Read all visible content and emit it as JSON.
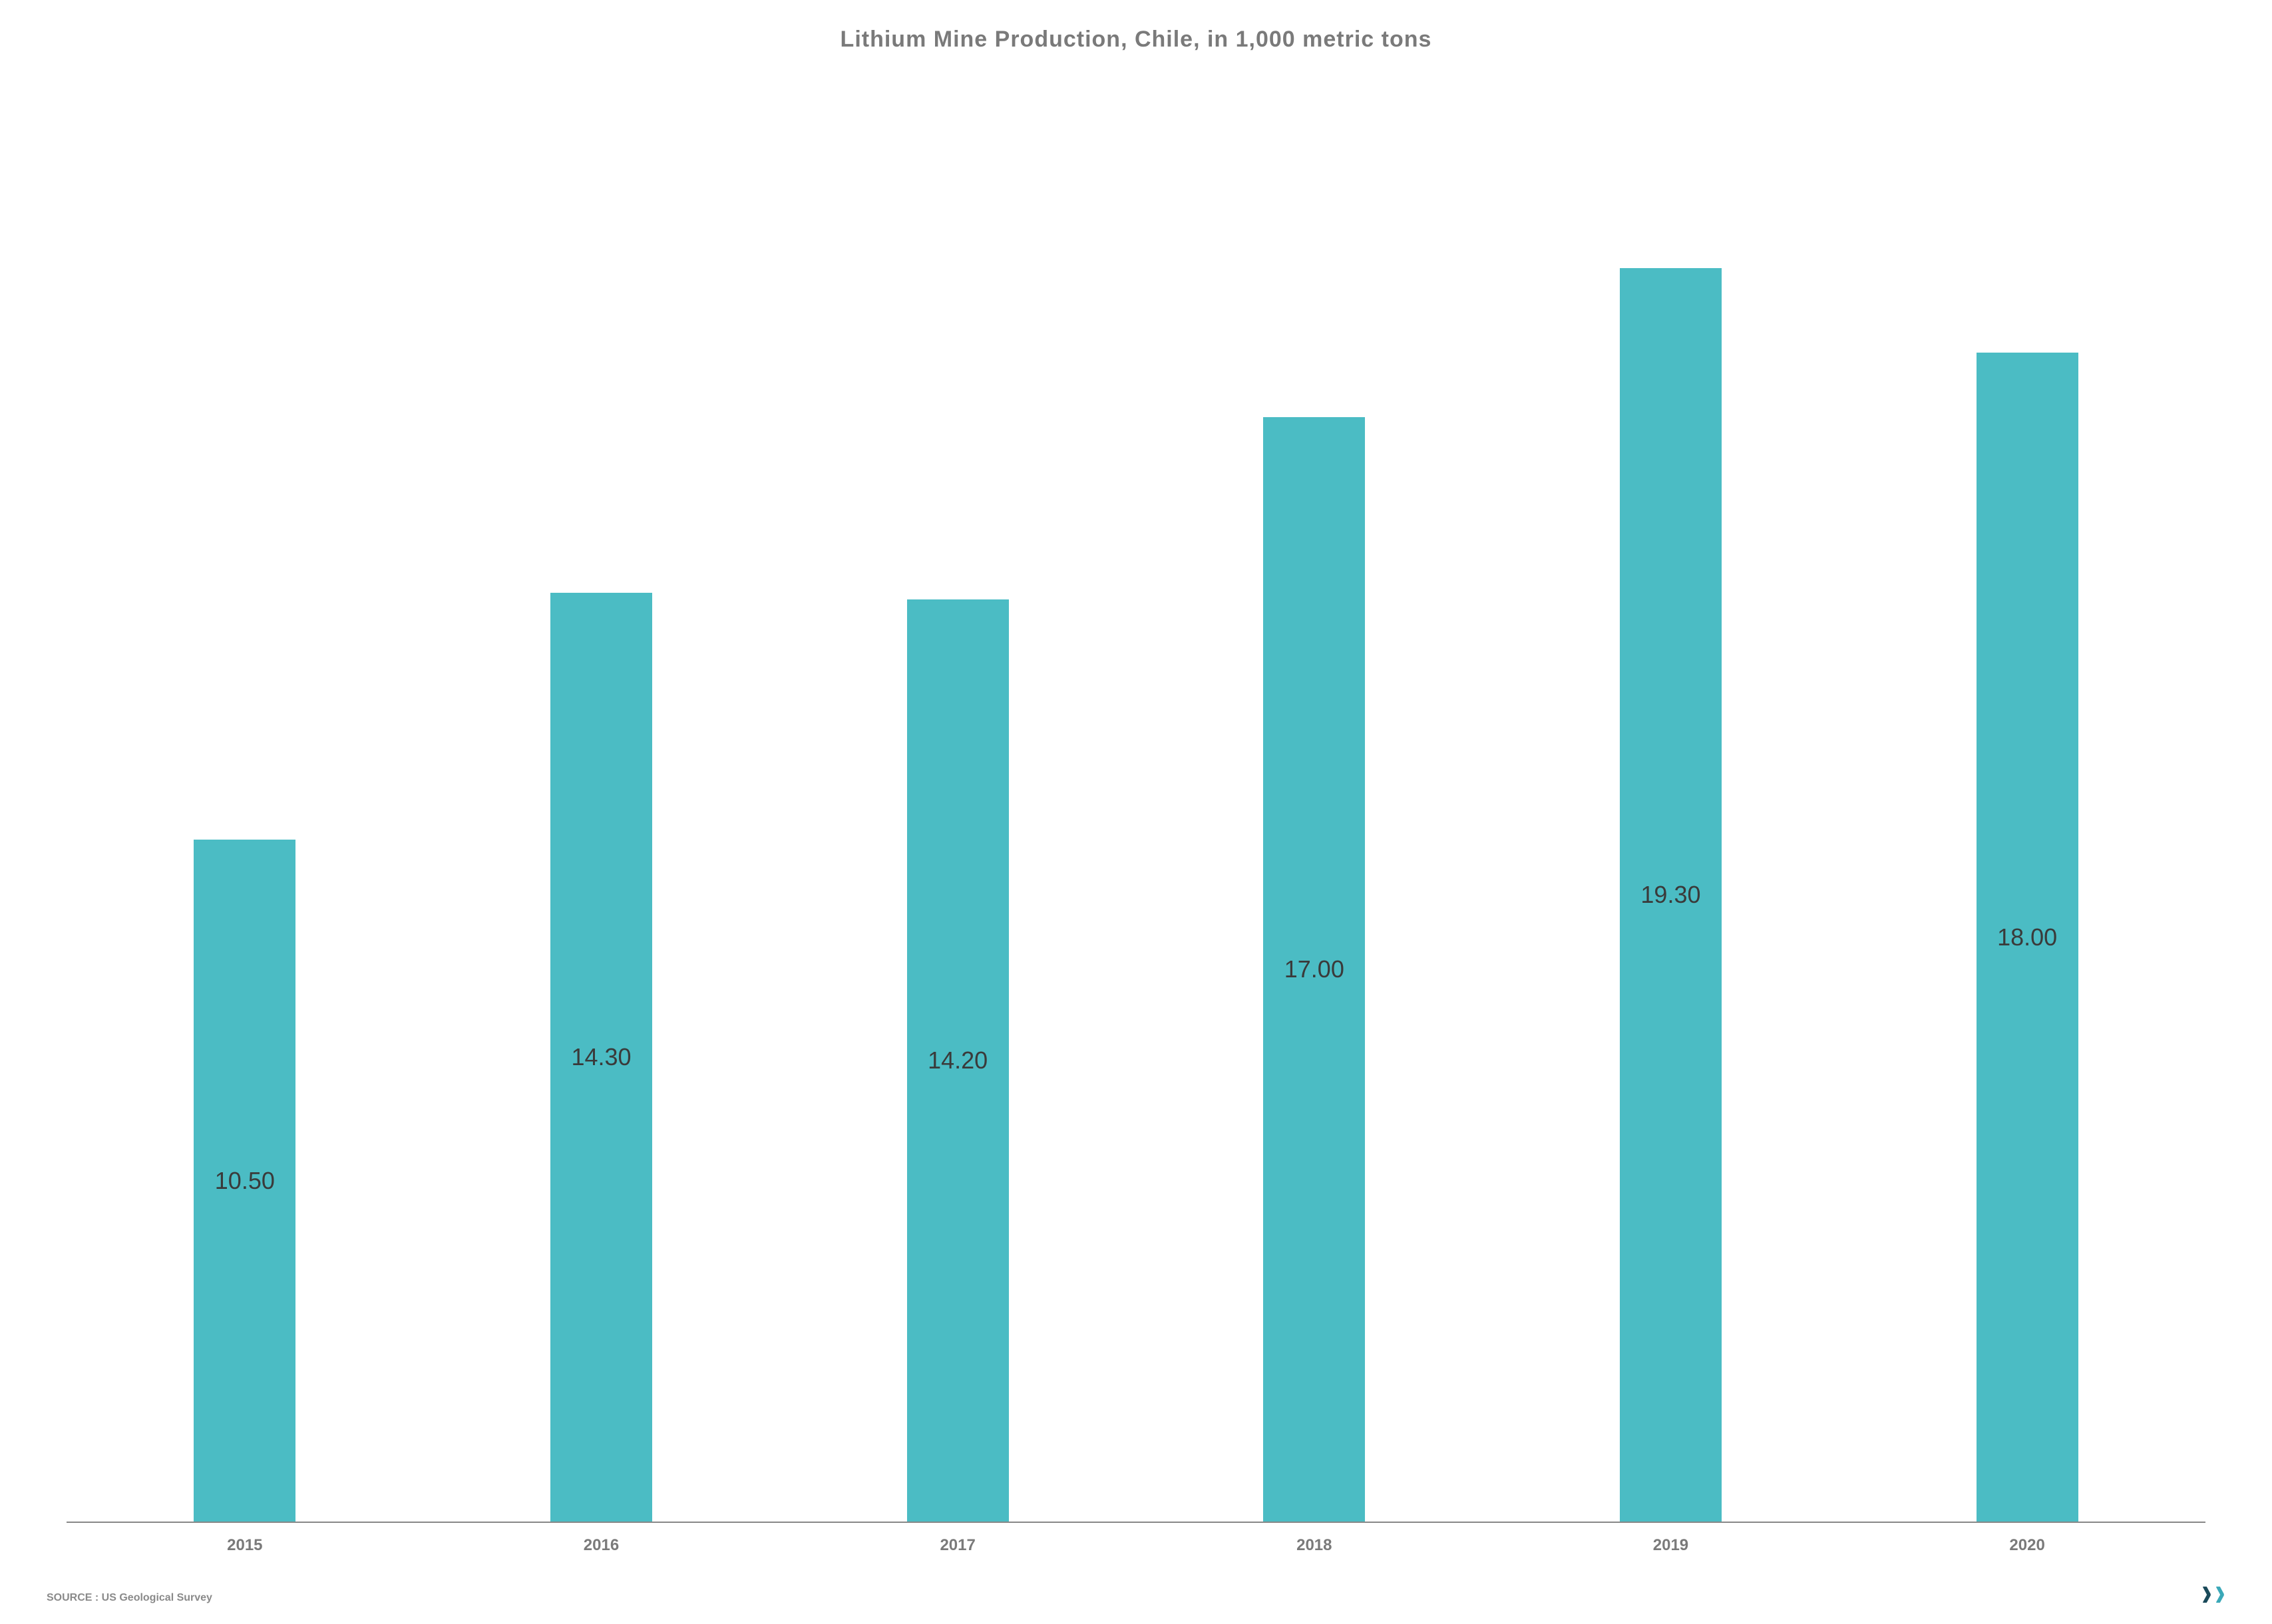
{
  "chart": {
    "type": "bar",
    "title": "Lithium Mine Production, Chile, in 1,000 metric tons",
    "title_fontsize": 34,
    "title_color": "#7a7a7a",
    "categories": [
      "2015",
      "2016",
      "2017",
      "2018",
      "2019",
      "2020"
    ],
    "values": [
      10.5,
      14.3,
      14.2,
      17.0,
      19.3,
      18.0
    ],
    "value_labels": [
      "10.50",
      "14.30",
      "14.20",
      "17.00",
      "19.30",
      "18.00"
    ],
    "bar_color": "#4bbcc4",
    "value_label_color": "#3a3a3a",
    "value_label_fontsize": 36,
    "x_label_color": "#7a7a7a",
    "x_label_fontsize": 24,
    "ylim_max": 22,
    "axis_color": "#888888",
    "background_color": "#ffffff",
    "bar_width_ratio": 0.85
  },
  "source": {
    "label": "SOURCE : US Geological Survey",
    "color": "#8a8a8a",
    "fontsize": 16
  },
  "logo": {
    "color1": "#1a4a5a",
    "color2": "#3aa8b8",
    "fontsize": 48
  }
}
